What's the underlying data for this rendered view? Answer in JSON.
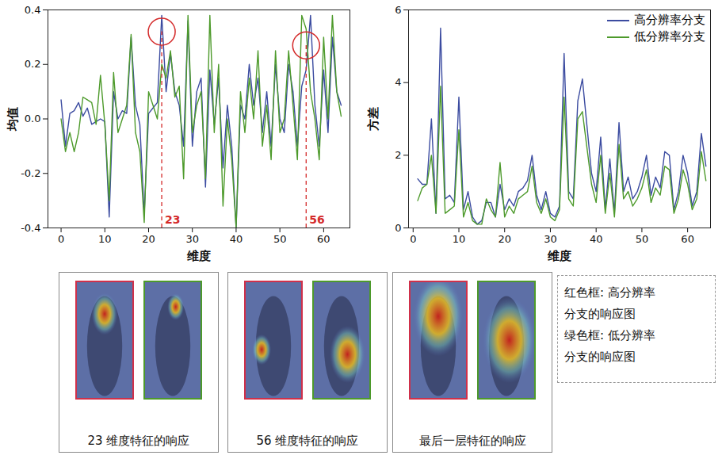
{
  "chart_data": [
    {
      "type": "line",
      "x_label": "维度",
      "y_label": "均值",
      "x": [
        0,
        1,
        2,
        3,
        4,
        5,
        6,
        7,
        8,
        9,
        10,
        11,
        12,
        13,
        14,
        15,
        16,
        17,
        18,
        19,
        20,
        21,
        22,
        23,
        24,
        25,
        26,
        27,
        28,
        29,
        30,
        31,
        32,
        33,
        34,
        35,
        36,
        37,
        38,
        39,
        40,
        41,
        42,
        43,
        44,
        45,
        46,
        47,
        48,
        49,
        50,
        51,
        52,
        53,
        54,
        55,
        56,
        57,
        58,
        59,
        60,
        61,
        62,
        63,
        64
      ],
      "series": [
        {
          "name": "高分辨率分支",
          "color": "#3b4ba0",
          "values": [
            0.07,
            -0.1,
            0.02,
            0.03,
            0.06,
            0.01,
            0.04,
            -0.02,
            -0.01,
            0.0,
            -0.01,
            -0.36,
            0.1,
            0.0,
            0.03,
            0.02,
            0.3,
            0.05,
            -0.02,
            -0.35,
            0.02,
            0.04,
            0.06,
            0.38,
            0.1,
            0.24,
            0.1,
            0.05,
            -0.1,
            0.36,
            -0.1,
            0.1,
            0.15,
            -0.25,
            0.18,
            -0.02,
            0.15,
            -0.18,
            0.05,
            -0.1,
            -0.4,
            0.05,
            0.0,
            0.2,
            0.05,
            0.15,
            -0.05,
            0.1,
            -0.1,
            0.2,
            0.0,
            -0.05,
            0.2,
            0.1,
            -0.1,
            0.12,
            0.18,
            0.38,
            0.05,
            -0.1,
            0.18,
            -0.05,
            0.3,
            0.1,
            0.05
          ]
        },
        {
          "name": "低分辨率分支",
          "color": "#4d9a2b",
          "values": [
            0.0,
            -0.12,
            -0.05,
            -0.12,
            -0.05,
            0.08,
            0.07,
            0.06,
            -0.02,
            0.16,
            -0.02,
            -0.3,
            0.17,
            -0.05,
            0.0,
            0.05,
            0.31,
            -0.05,
            -0.12,
            -0.38,
            0.1,
            0.05,
            0.0,
            0.2,
            0.15,
            0.25,
            0.08,
            0.12,
            -0.22,
            0.38,
            -0.05,
            0.05,
            0.1,
            -0.22,
            0.38,
            -0.05,
            0.2,
            -0.32,
            0.0,
            -0.15,
            -0.4,
            0.1,
            -0.05,
            0.15,
            0.0,
            0.25,
            -0.1,
            0.05,
            -0.15,
            0.25,
            -0.05,
            0.0,
            0.25,
            0.05,
            -0.15,
            0.38,
            0.33,
            0.1,
            0.0,
            -0.15,
            0.3,
            0.0,
            0.38,
            0.1,
            0.01
          ]
        }
      ],
      "xlim": [
        -3,
        66
      ],
      "xticks": [
        0,
        10,
        20,
        30,
        40,
        50,
        60
      ],
      "ylim": [
        -0.4,
        0.4
      ],
      "yticks": [
        -0.4,
        -0.2,
        {
          "value": 0,
          "label": "0.0"
        },
        0.2,
        0.4
      ],
      "annotations": [
        {
          "x": 23,
          "label": "23"
        },
        {
          "x": 56,
          "label": "56"
        }
      ]
    },
    {
      "type": "line",
      "x_label": "维度",
      "y_label": "方差",
      "x": [
        1,
        2,
        3,
        4,
        5,
        6,
        7,
        8,
        9,
        10,
        11,
        12,
        13,
        14,
        15,
        16,
        17,
        18,
        19,
        20,
        21,
        22,
        23,
        24,
        25,
        26,
        27,
        28,
        29,
        30,
        31,
        32,
        33,
        34,
        35,
        36,
        37,
        38,
        39,
        40,
        41,
        42,
        43,
        44,
        45,
        46,
        47,
        48,
        49,
        50,
        51,
        52,
        53,
        54,
        55,
        56,
        57,
        58,
        59,
        60,
        61,
        62,
        63,
        64
      ],
      "series": [
        {
          "name": "高分辨率分支",
          "color": "#3b4ba0",
          "values": [
            1.35,
            1.2,
            1.2,
            3.0,
            0.4,
            5.5,
            0.8,
            0.9,
            0.7,
            3.6,
            0.5,
            1.0,
            0.3,
            0.1,
            0.2,
            0.7,
            0.7,
            0.3,
            1.2,
            0.5,
            0.8,
            0.6,
            1.0,
            1.1,
            1.3,
            2.0,
            0.9,
            0.5,
            1.0,
            0.4,
            0.3,
            0.6,
            4.8,
            1.0,
            0.8,
            3.5,
            4.1,
            2.8,
            1.5,
            1.0,
            2.5,
            0.5,
            1.9,
            0.4,
            2.9,
            1.0,
            1.4,
            0.8,
            1.0,
            1.4,
            2.0,
            0.9,
            1.4,
            1.1,
            2.1,
            2.0,
            0.5,
            1.0,
            2.0,
            1.5,
            0.6,
            1.0,
            2.6,
            1.7
          ]
        },
        {
          "name": "低分辨率分支",
          "color": "#4d9a2b",
          "values": [
            0.75,
            1.1,
            1.2,
            2.0,
            0.4,
            3.9,
            0.4,
            0.5,
            0.6,
            2.7,
            0.3,
            0.7,
            0.2,
            0.1,
            0.1,
            0.8,
            0.5,
            0.3,
            1.8,
            0.3,
            0.6,
            0.4,
            0.8,
            0.9,
            1.0,
            1.7,
            0.7,
            0.4,
            0.8,
            0.3,
            0.2,
            0.5,
            3.6,
            0.8,
            0.6,
            3.0,
            3.2,
            2.2,
            1.2,
            0.7,
            2.0,
            0.4,
            1.5,
            0.3,
            2.3,
            0.8,
            1.0,
            0.6,
            0.8,
            1.1,
            1.6,
            0.7,
            1.1,
            0.9,
            1.7,
            1.6,
            0.4,
            0.8,
            1.6,
            1.2,
            0.5,
            0.8,
            2.1,
            1.3
          ]
        }
      ],
      "xlim": [
        -1,
        65
      ],
      "xticks": [
        0,
        10,
        20,
        30,
        40,
        50,
        60
      ],
      "ylim": [
        0,
        6
      ],
      "yticks": [
        0,
        2,
        4,
        6
      ],
      "legend": "top-right"
    }
  ],
  "panels": [
    {
      "caption": "23 维度特征的响应"
    },
    {
      "caption": "56 维度特征的响应"
    },
    {
      "caption": "最后一层特征的响应"
    }
  ],
  "note": [
    "红色框: 高分辨率",
    "分支的响应图",
    "绿色框: 低分辨率",
    "分支的响应图"
  ]
}
